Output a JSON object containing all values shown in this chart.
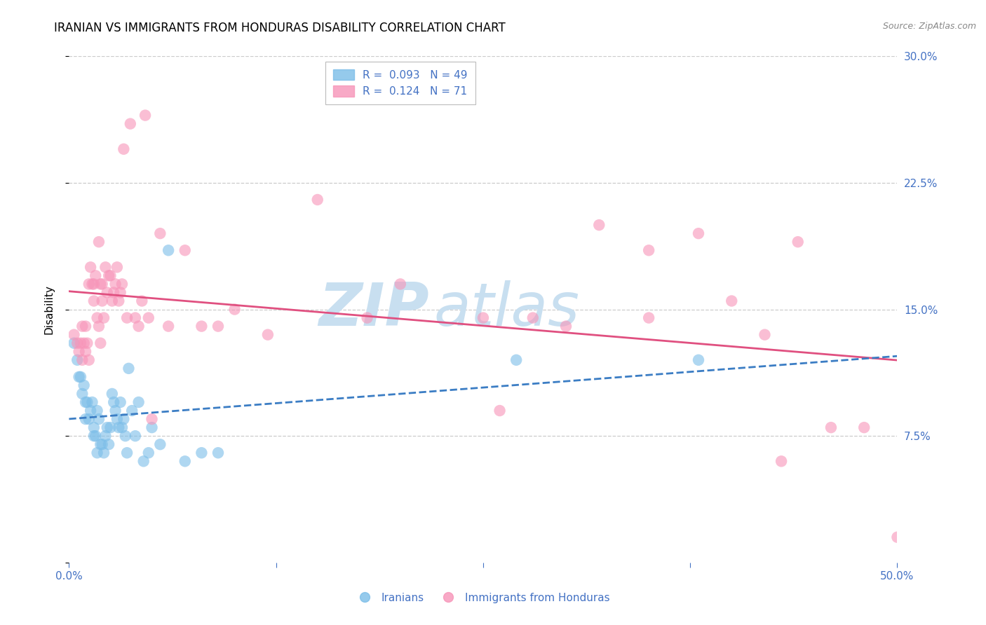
{
  "title": "IRANIAN VS IMMIGRANTS FROM HONDURAS DISABILITY CORRELATION CHART",
  "source": "Source: ZipAtlas.com",
  "ylabel": "Disability",
  "xlim": [
    0.0,
    0.5
  ],
  "ylim": [
    0.0,
    0.3
  ],
  "xticks": [
    0.0,
    0.125,
    0.25,
    0.375,
    0.5
  ],
  "xticklabels": [
    "0.0%",
    "",
    "",
    "",
    "50.0%"
  ],
  "yticks": [
    0.0,
    0.075,
    0.15,
    0.225,
    0.3
  ],
  "yticklabels": [
    "",
    "7.5%",
    "15.0%",
    "22.5%",
    "30.0%"
  ],
  "watermark_zip": "ZIP",
  "watermark_atlas": "atlas",
  "watermark_color": "#c8dff0",
  "iranians_color": "#7bbde8",
  "honduras_color": "#f794b8",
  "iranians_line_color": "#3b7dc4",
  "honduras_line_color": "#e05080",
  "iranians_line_style": "--",
  "honduras_line_style": "-",
  "background_color": "#ffffff",
  "axis_color": "#4472c4",
  "grid_color": "#cccccc",
  "title_fontsize": 12,
  "tick_fontsize": 11,
  "legend_fontsize": 11,
  "iranians_x": [
    0.003,
    0.005,
    0.006,
    0.007,
    0.008,
    0.009,
    0.01,
    0.01,
    0.011,
    0.012,
    0.013,
    0.014,
    0.015,
    0.015,
    0.016,
    0.017,
    0.017,
    0.018,
    0.019,
    0.02,
    0.021,
    0.022,
    0.023,
    0.024,
    0.025,
    0.026,
    0.027,
    0.028,
    0.029,
    0.03,
    0.031,
    0.032,
    0.033,
    0.034,
    0.035,
    0.036,
    0.038,
    0.04,
    0.042,
    0.045,
    0.048,
    0.05,
    0.055,
    0.06,
    0.07,
    0.08,
    0.09,
    0.27,
    0.38
  ],
  "iranians_y": [
    0.13,
    0.12,
    0.11,
    0.11,
    0.1,
    0.105,
    0.095,
    0.085,
    0.095,
    0.085,
    0.09,
    0.095,
    0.075,
    0.08,
    0.075,
    0.09,
    0.065,
    0.085,
    0.07,
    0.07,
    0.065,
    0.075,
    0.08,
    0.07,
    0.08,
    0.1,
    0.095,
    0.09,
    0.085,
    0.08,
    0.095,
    0.08,
    0.085,
    0.075,
    0.065,
    0.115,
    0.09,
    0.075,
    0.095,
    0.06,
    0.065,
    0.08,
    0.07,
    0.185,
    0.06,
    0.065,
    0.065,
    0.12,
    0.12
  ],
  "honduras_x": [
    0.003,
    0.005,
    0.006,
    0.007,
    0.008,
    0.008,
    0.009,
    0.01,
    0.01,
    0.011,
    0.012,
    0.012,
    0.013,
    0.014,
    0.015,
    0.015,
    0.016,
    0.017,
    0.018,
    0.018,
    0.019,
    0.019,
    0.02,
    0.02,
    0.021,
    0.022,
    0.023,
    0.024,
    0.025,
    0.026,
    0.027,
    0.028,
    0.029,
    0.03,
    0.031,
    0.032,
    0.033,
    0.035,
    0.037,
    0.04,
    0.042,
    0.044,
    0.046,
    0.048,
    0.05,
    0.055,
    0.06,
    0.07,
    0.08,
    0.09,
    0.1,
    0.12,
    0.15,
    0.18,
    0.2,
    0.25,
    0.28,
    0.3,
    0.32,
    0.35,
    0.38,
    0.4,
    0.42,
    0.44,
    0.46,
    0.48,
    0.5,
    0.26,
    0.35,
    0.43
  ],
  "honduras_y": [
    0.135,
    0.13,
    0.125,
    0.13,
    0.12,
    0.14,
    0.13,
    0.125,
    0.14,
    0.13,
    0.12,
    0.165,
    0.175,
    0.165,
    0.165,
    0.155,
    0.17,
    0.145,
    0.14,
    0.19,
    0.165,
    0.13,
    0.155,
    0.165,
    0.145,
    0.175,
    0.16,
    0.17,
    0.17,
    0.155,
    0.16,
    0.165,
    0.175,
    0.155,
    0.16,
    0.165,
    0.245,
    0.145,
    0.26,
    0.145,
    0.14,
    0.155,
    0.265,
    0.145,
    0.085,
    0.195,
    0.14,
    0.185,
    0.14,
    0.14,
    0.15,
    0.135,
    0.215,
    0.145,
    0.165,
    0.145,
    0.145,
    0.14,
    0.2,
    0.185,
    0.195,
    0.155,
    0.135,
    0.19,
    0.08,
    0.08,
    0.015,
    0.09,
    0.145,
    0.06
  ]
}
